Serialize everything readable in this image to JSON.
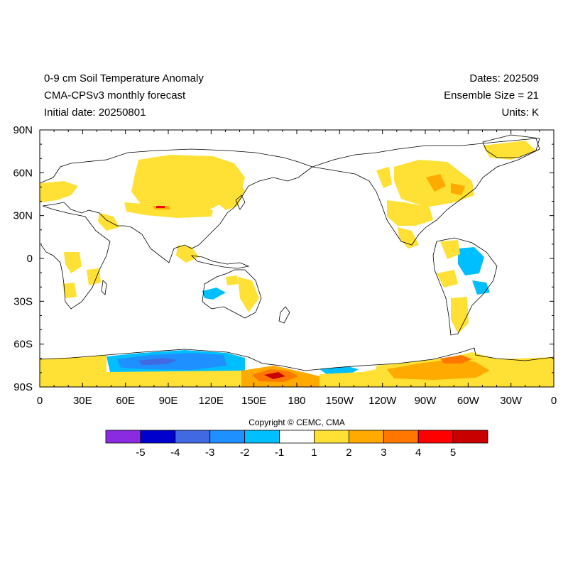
{
  "header": {
    "title": "0-9 cm Soil Temperature Anomaly",
    "subtitle": "CMA-CPSv3 monthly forecast",
    "initial_date": "Initial date: 20250801",
    "dates": "Dates: 202509",
    "ensemble": "Ensemble Size = 21",
    "units": "Units: K"
  },
  "axes": {
    "lat_labels": [
      "90N",
      "60N",
      "30N",
      "0",
      "30S",
      "60S",
      "90S"
    ],
    "lon_labels": [
      "0",
      "30E",
      "60E",
      "90E",
      "120E",
      "150E",
      "180",
      "150W",
      "120W",
      "90W",
      "60W",
      "30W",
      "0"
    ]
  },
  "copyright": "Copyright © CEMC, CMA",
  "colorbar": {
    "colors": [
      "#8a2be2",
      "#0000cd",
      "#4169e1",
      "#1e90ff",
      "#00bfff",
      "#ffffff",
      "#ffe135",
      "#ffaa00",
      "#ff7700",
      "#ff0000",
      "#c80000"
    ],
    "labels": [
      "-5",
      "-4",
      "-3",
      "-2",
      "-1",
      "1",
      "2",
      "3",
      "4",
      "5"
    ]
  },
  "colors": {
    "warm_1": "#ffe135",
    "warm_2": "#ffaa00",
    "warm_3": "#ff7700",
    "warm_4": "#ff0000",
    "warm_5": "#c80000",
    "cool_1": "#00bfff",
    "cool_2": "#1e90ff",
    "cool_3": "#4169e1"
  }
}
